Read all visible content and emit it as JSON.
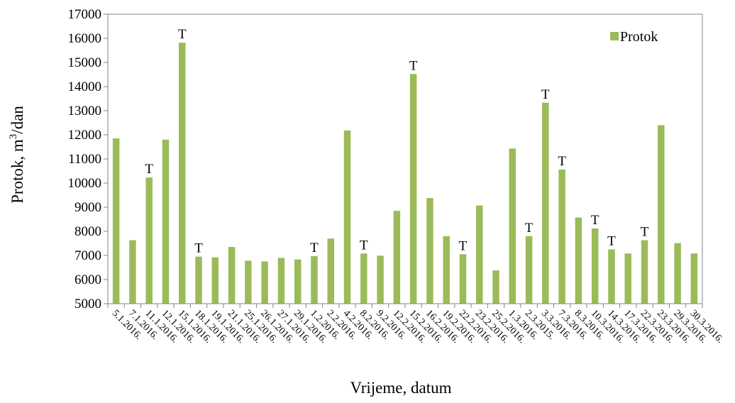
{
  "chart_data": {
    "type": "bar",
    "title": "",
    "xlabel": "Vrijeme, datum",
    "ylabel_main": "Protok, m",
    "ylabel_sup": "3",
    "ylabel_unit": "/dan",
    "ylim": [
      5000,
      17000
    ],
    "yticks": [
      5000,
      6000,
      7000,
      8000,
      9000,
      10000,
      11000,
      12000,
      13000,
      14000,
      15000,
      16000,
      17000
    ],
    "ytick_labels": [
      "5000",
      "6000",
      "7000",
      "8000",
      "9000",
      "10000",
      "11000",
      "12000",
      "13000",
      "14000",
      "15000",
      "16000",
      "17000"
    ],
    "grid": false,
    "legend_position": "top-right",
    "bar_color": "#9BBB59",
    "annotation_label": "T",
    "categories": [
      "5.1.2016.",
      "7.1.2016.",
      "11.1.2016.",
      "12.1.2016.",
      "15.1.2016.",
      "18.1.2016.",
      "19.1.2016.",
      "21.1.2016.",
      "25.1.2016.",
      "26.1.2016.",
      "27.1.2016.",
      "29.1.2016.",
      "1.2.2016.",
      "2.2.2016.",
      "4.2.2016.",
      "8.2.2016.",
      "9.2.2016.",
      "12.2.2016.",
      "15.2.2016.",
      "16.2.2016.",
      "19.2.2016.",
      "22.2.2016.",
      "23.2.2016.",
      "25.2.2016.",
      "1.3.2016.",
      "2.3.2015.",
      "3.3.2016.",
      "7.3.2016.",
      "8.3.2016.",
      "10.3.2016.",
      "14.3.2016.",
      "17.3.2016.",
      "22.3.2016.",
      "23.3.2016.",
      "29.3.2016.",
      "30.3.2016."
    ],
    "series": [
      {
        "name": "Protok",
        "values": [
          11850,
          7630,
          10230,
          11800,
          15820,
          6950,
          6920,
          7350,
          6780,
          6750,
          6900,
          6830,
          6970,
          7700,
          12180,
          7080,
          6990,
          8850,
          14520,
          9380,
          7800,
          7050,
          9070,
          6380,
          11430,
          7800,
          13330,
          10560,
          8570,
          8120,
          7250,
          7080,
          7630,
          12400,
          7510,
          7080
        ],
        "annotated": [
          false,
          false,
          true,
          false,
          true,
          true,
          false,
          false,
          false,
          false,
          false,
          false,
          true,
          false,
          false,
          true,
          false,
          false,
          true,
          false,
          false,
          true,
          false,
          false,
          false,
          true,
          true,
          true,
          false,
          true,
          true,
          false,
          true,
          false,
          false,
          false
        ]
      }
    ]
  }
}
